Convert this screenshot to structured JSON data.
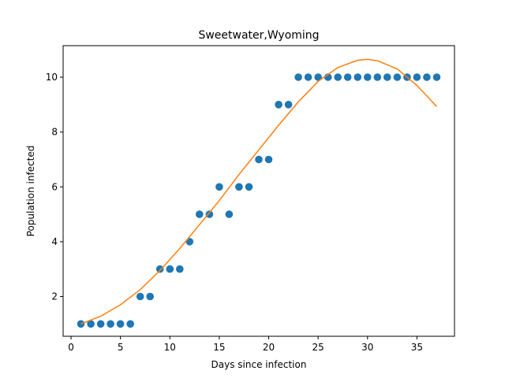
{
  "chart_data": {
    "type": "scatter",
    "title": "Sweetwater,Wyoming",
    "xlabel": "Days since infection",
    "ylabel": "Population infected",
    "xlim": [
      -0.8,
      38.8
    ],
    "ylim": [
      0.55,
      11.15
    ],
    "xticks": [
      0,
      5,
      10,
      15,
      20,
      25,
      30,
      35
    ],
    "yticks": [
      2,
      4,
      6,
      8,
      10
    ],
    "grid": false,
    "legend": "none",
    "series": [
      {
        "kind": "points",
        "color": "#1f77b4",
        "x": [
          1,
          2,
          3,
          4,
          5,
          6,
          7,
          8,
          9,
          10,
          11,
          12,
          13,
          14,
          15,
          16,
          17,
          18,
          19,
          20,
          21,
          22,
          23,
          24,
          25,
          26,
          27,
          28,
          29,
          30,
          31,
          32,
          33,
          34,
          35,
          36,
          37
        ],
        "y": [
          1,
          1,
          1,
          1,
          1,
          1,
          2,
          2,
          3,
          3,
          3,
          4,
          5,
          5,
          6,
          5,
          6,
          6,
          7,
          7,
          9,
          9,
          10,
          10,
          10,
          10,
          10,
          10,
          10,
          10,
          10,
          10,
          10,
          10,
          10,
          10,
          10
        ]
      },
      {
        "kind": "line",
        "color": "#ff7f0e",
        "x": [
          1,
          3,
          5,
          7,
          9,
          11,
          13,
          15,
          17,
          19,
          21,
          23,
          25,
          27,
          29,
          30,
          31,
          33,
          35,
          37
        ],
        "y": [
          1.0,
          1.28,
          1.7,
          2.25,
          2.95,
          3.75,
          4.62,
          5.5,
          6.45,
          7.35,
          8.25,
          9.1,
          9.85,
          10.35,
          10.62,
          10.65,
          10.6,
          10.3,
          9.7,
          8.93
        ]
      }
    ]
  }
}
